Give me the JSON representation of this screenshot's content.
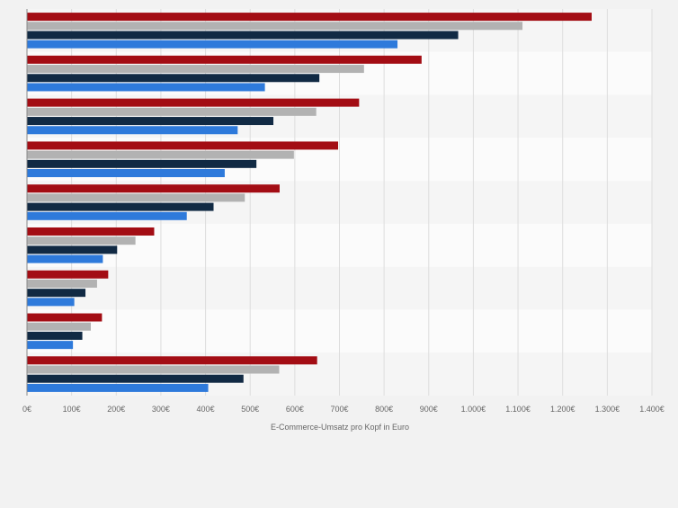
{
  "chart_data": {
    "type": "bar",
    "orientation": "horizontal",
    "categories": [
      "",
      "",
      "",
      "",
      "",
      "",
      "",
      "",
      ""
    ],
    "series": [
      {
        "color": "#a30d14",
        "values": [
          1265,
          884,
          744,
          697,
          566,
          285,
          182,
          168,
          650
        ]
      },
      {
        "color": "#b2b2b2",
        "values": [
          1110,
          755,
          648,
          598,
          488,
          243,
          157,
          143,
          565
        ]
      },
      {
        "color": "#112a44",
        "values": [
          966,
          655,
          552,
          514,
          418,
          202,
          131,
          124,
          485
        ]
      },
      {
        "color": "#2e7adb",
        "values": [
          830,
          533,
          472,
          443,
          358,
          170,
          106,
          103,
          406
        ]
      }
    ],
    "xlabel": "E-Commerce-Umsatz pro Kopf in Euro",
    "xlim": [
      0,
      1400
    ],
    "xticks": [
      0,
      100,
      200,
      300,
      400,
      500,
      600,
      700,
      800,
      900,
      1000,
      1100,
      1200,
      1300,
      1400
    ],
    "xtick_labels": [
      "0€",
      "100€",
      "200€",
      "300€",
      "400€",
      "500€",
      "600€",
      "700€",
      "800€",
      "900€",
      "1.000€",
      "1.100€",
      "1.200€",
      "1.300€",
      "1.400€"
    ],
    "grid": true,
    "legend": "none"
  }
}
